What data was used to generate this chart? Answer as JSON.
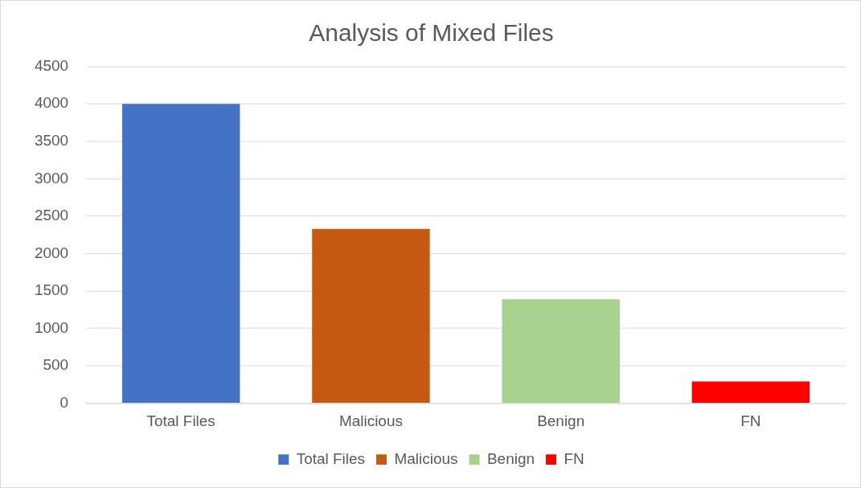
{
  "chart_data": {
    "type": "bar",
    "title": "Analysis of Mixed Files",
    "categories": [
      "Total Files",
      "Malicious",
      "Benign",
      "FN"
    ],
    "series": [
      {
        "name": "Total Files",
        "color": "#4472c4",
        "values": [
          4000,
          null,
          null,
          null
        ]
      },
      {
        "name": "Malicious",
        "color": "#c55a11",
        "values": [
          null,
          2330,
          null,
          null
        ]
      },
      {
        "name": "Benign",
        "color": "#a9d18e",
        "values": [
          null,
          null,
          1390,
          null
        ]
      },
      {
        "name": "FN",
        "color": "#ff0000",
        "values": [
          null,
          null,
          null,
          290
        ]
      }
    ],
    "ylim": [
      0,
      4500
    ],
    "yticks": [
      0,
      500,
      1000,
      1500,
      2000,
      2500,
      3000,
      3500,
      4000,
      4500
    ],
    "grid": "y",
    "legend": "bottom"
  }
}
